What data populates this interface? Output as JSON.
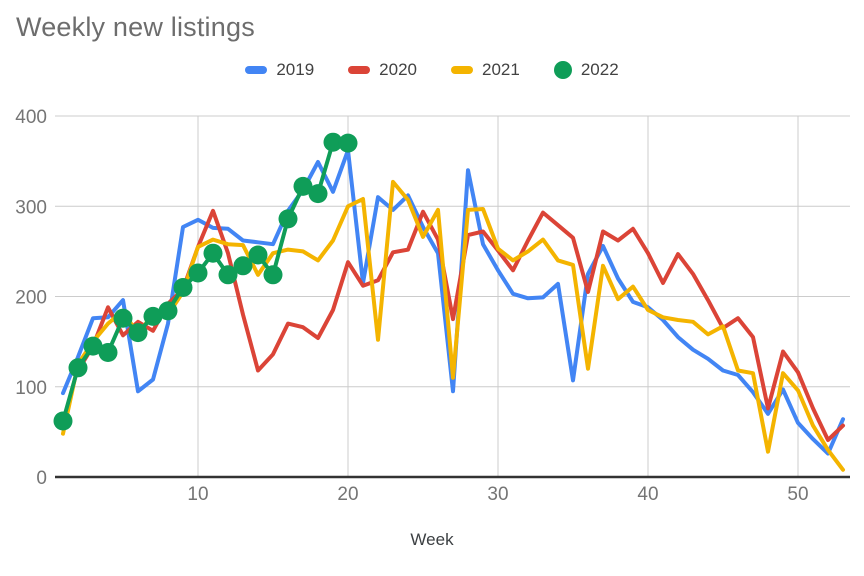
{
  "header": {
    "title": "Weekly new listings"
  },
  "legend": {
    "items": [
      {
        "label": "2019",
        "color": "#4285F4",
        "shape": "line"
      },
      {
        "label": "2020",
        "color": "#DB4437",
        "shape": "line"
      },
      {
        "label": "2021",
        "color": "#F4B400",
        "shape": "line"
      },
      {
        "label": "2022",
        "color": "#0F9D58",
        "shape": "dot"
      }
    ]
  },
  "axes": {
    "x_label": "Week",
    "x_tick_labels": [
      "10",
      "20",
      "30",
      "40",
      "50"
    ],
    "y_tick_labels": [
      "0",
      "100",
      "200",
      "300",
      "400"
    ]
  },
  "colors": {
    "grid": "#cccccc",
    "baseline": "#333333",
    "tick_text": "#757575",
    "title_text": "#6d6d6d",
    "axis_title_text": "#3c4043"
  },
  "chart_data": {
    "type": "line",
    "title": "Weekly new listings",
    "xlabel": "Week",
    "ylabel": "",
    "xlim": [
      1,
      53
    ],
    "ylim": [
      0,
      400
    ],
    "x_ticks": [
      10,
      20,
      30,
      40,
      50
    ],
    "y_ticks": [
      0,
      100,
      200,
      300,
      400
    ],
    "grid": true,
    "legend_position": "top",
    "x_unit": "week_number",
    "series": [
      {
        "name": "2019",
        "color": "#4285F4",
        "style": "line",
        "values": [
          93,
          133,
          176,
          177,
          196,
          95,
          108,
          170,
          277,
          285,
          276,
          275,
          262,
          260,
          258,
          295,
          318,
          349,
          316,
          362,
          215,
          310,
          296,
          312,
          277,
          248,
          95,
          340,
          258,
          229,
          203,
          198,
          199,
          214,
          107,
          225,
          256,
          220,
          194,
          188,
          174,
          155,
          141,
          131,
          118,
          113,
          94,
          70,
          97,
          60,
          42,
          26,
          64
        ]
      },
      {
        "name": "2020",
        "color": "#DB4437",
        "style": "line",
        "values": [
          null,
          118,
          145,
          188,
          157,
          172,
          162,
          192,
          208,
          255,
          295,
          248,
          180,
          118,
          136,
          170,
          166,
          154,
          185,
          238,
          212,
          218,
          249,
          252,
          294,
          263,
          175,
          268,
          272,
          251,
          229,
          262,
          293,
          279,
          265,
          205,
          272,
          262,
          275,
          248,
          215,
          247,
          225,
          196,
          165,
          176,
          155,
          76,
          139,
          116,
          76,
          41,
          57
        ]
      },
      {
        "name": "2021",
        "color": "#F4B400",
        "style": "line",
        "values": [
          48,
          125,
          150,
          170,
          184,
          158,
          181,
          180,
          205,
          255,
          263,
          258,
          257,
          224,
          248,
          252,
          250,
          240,
          262,
          300,
          308,
          152,
          327,
          307,
          266,
          296,
          110,
          296,
          297,
          253,
          240,
          250,
          263,
          240,
          235,
          120,
          234,
          197,
          211,
          185,
          177,
          174,
          172,
          158,
          167,
          118,
          115,
          28,
          115,
          96,
          57,
          30,
          8
        ]
      },
      {
        "name": "2022",
        "color": "#0F9D58",
        "style": "line+points",
        "values": [
          62,
          121,
          145,
          138,
          176,
          160,
          178,
          184,
          210,
          226,
          248,
          224,
          234,
          246,
          224,
          286,
          322,
          314,
          371,
          370
        ]
      }
    ]
  }
}
